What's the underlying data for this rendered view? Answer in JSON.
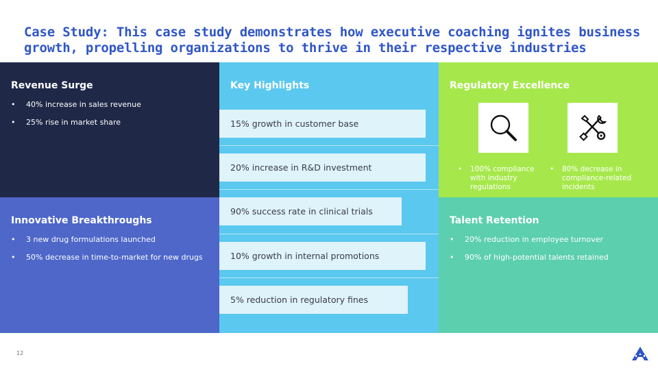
{
  "title": "Case Study: This case study demonstrates how executive coaching ignites business growth, propelling organizations to thrive in their respective industries",
  "revenue": {
    "heading": "Revenue Surge",
    "items": [
      "40% increase in sales revenue",
      "25% rise in market share"
    ]
  },
  "innovation": {
    "heading": "Innovative Breakthroughs",
    "items": [
      "3 new drug formulations launched",
      "50% decrease in time-to-market for new drugs"
    ]
  },
  "highlights": {
    "heading": "Key Highlights",
    "items": [
      {
        "label": "15% growth in customer base",
        "fill": 0.94
      },
      {
        "label": "20% increase in R&D investment",
        "fill": 0.94
      },
      {
        "label": "90% success rate in clinical trials",
        "fill": 0.83
      },
      {
        "label": "10% growth in internal promotions",
        "fill": 0.94
      },
      {
        "label": "5% reduction in regulatory fines",
        "fill": 0.86
      }
    ]
  },
  "regulatory": {
    "heading": "Regulatory Excellence",
    "items": [
      {
        "icon": "magnifier-icon",
        "text": "100% compliance with industry regulations"
      },
      {
        "icon": "tools-icon",
        "text": "80% decrease in compliance-related incidents"
      }
    ]
  },
  "talent": {
    "heading": "Talent Retention",
    "items": [
      "20% reduction in employee turnover",
      "90% of high-potential talents retained"
    ]
  },
  "colors": {
    "title": "#2f56c6",
    "navy": "#1f2847",
    "blue": "#4e67c9",
    "sky": "#5bc8ef",
    "lime": "#a6e84b",
    "teal": "#5ccfae",
    "bar": "#dff3fb"
  },
  "footer": {
    "page_number": "12"
  }
}
